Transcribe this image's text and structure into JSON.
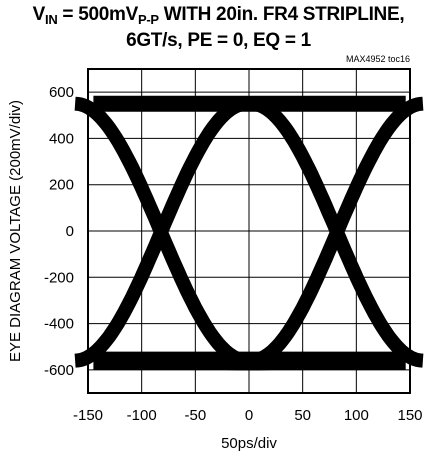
{
  "chart_data": {
    "type": "line",
    "title_parts": {
      "v": "V",
      "v_sub": "IN",
      "amp": " = 500mV",
      "amp_sub": "P-P",
      "rest": " WITH 20in. FR4 STRIPLINE,",
      "line2": "6GT/s, PE = 0, EQ = 1"
    },
    "figure_id": "MAX4952 toc16",
    "xlabel": "50ps/div",
    "ylabel": "EYE DIAGRAM VOLTAGE (200mV/div)",
    "xlim": [
      -150,
      150
    ],
    "ylim": [
      -700,
      700
    ],
    "x_ticks": [
      -150,
      -100,
      -50,
      0,
      50,
      100,
      150
    ],
    "y_ticks": [
      600,
      400,
      200,
      0,
      -200,
      -400,
      -600
    ],
    "grid": true,
    "high_level": 550,
    "low_level": -560,
    "crossings": [
      -82,
      82
    ],
    "series_color": "#000000"
  }
}
